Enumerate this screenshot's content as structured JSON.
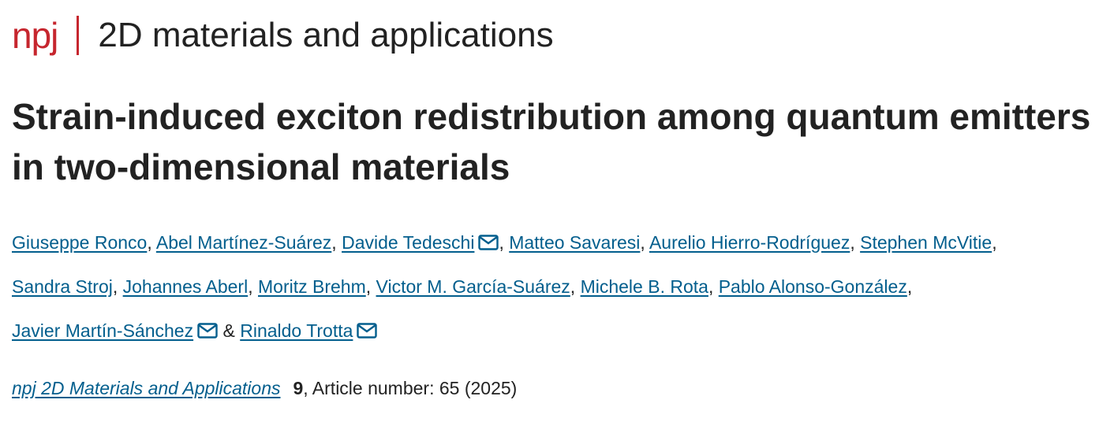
{
  "header": {
    "brand": "npj",
    "journal": "2D materials and applications"
  },
  "title": "Strain-induced exciton redistribution among quantum emitters in two-dimensional materials",
  "authors": {
    "separator": ",",
    "conjunction": "&",
    "list": [
      {
        "name": "Giuseppe Ronco",
        "email": false
      },
      {
        "name": "Abel Martínez-Suárez",
        "email": false
      },
      {
        "name": "Davide Tedeschi",
        "email": true
      },
      {
        "name": "Matteo Savaresi",
        "email": false
      },
      {
        "name": "Aurelio Hierro-Rodríguez",
        "email": false
      },
      {
        "name": "Stephen McVitie",
        "email": false
      },
      {
        "name": "Sandra Stroj",
        "email": false
      },
      {
        "name": "Johannes Aberl",
        "email": false
      },
      {
        "name": "Moritz Brehm",
        "email": false
      },
      {
        "name": "Victor M. García-Suárez",
        "email": false
      },
      {
        "name": "Michele B. Rota",
        "email": false
      },
      {
        "name": "Pablo Alonso-González",
        "email": false
      },
      {
        "name": "Javier Martín-Sánchez",
        "email": true
      },
      {
        "name": "Rinaldo Trotta",
        "email": true
      }
    ]
  },
  "citation": {
    "journal": "npj 2D Materials and Applications",
    "volume": "9",
    "details": ", Article number: 65 (2025)"
  }
}
